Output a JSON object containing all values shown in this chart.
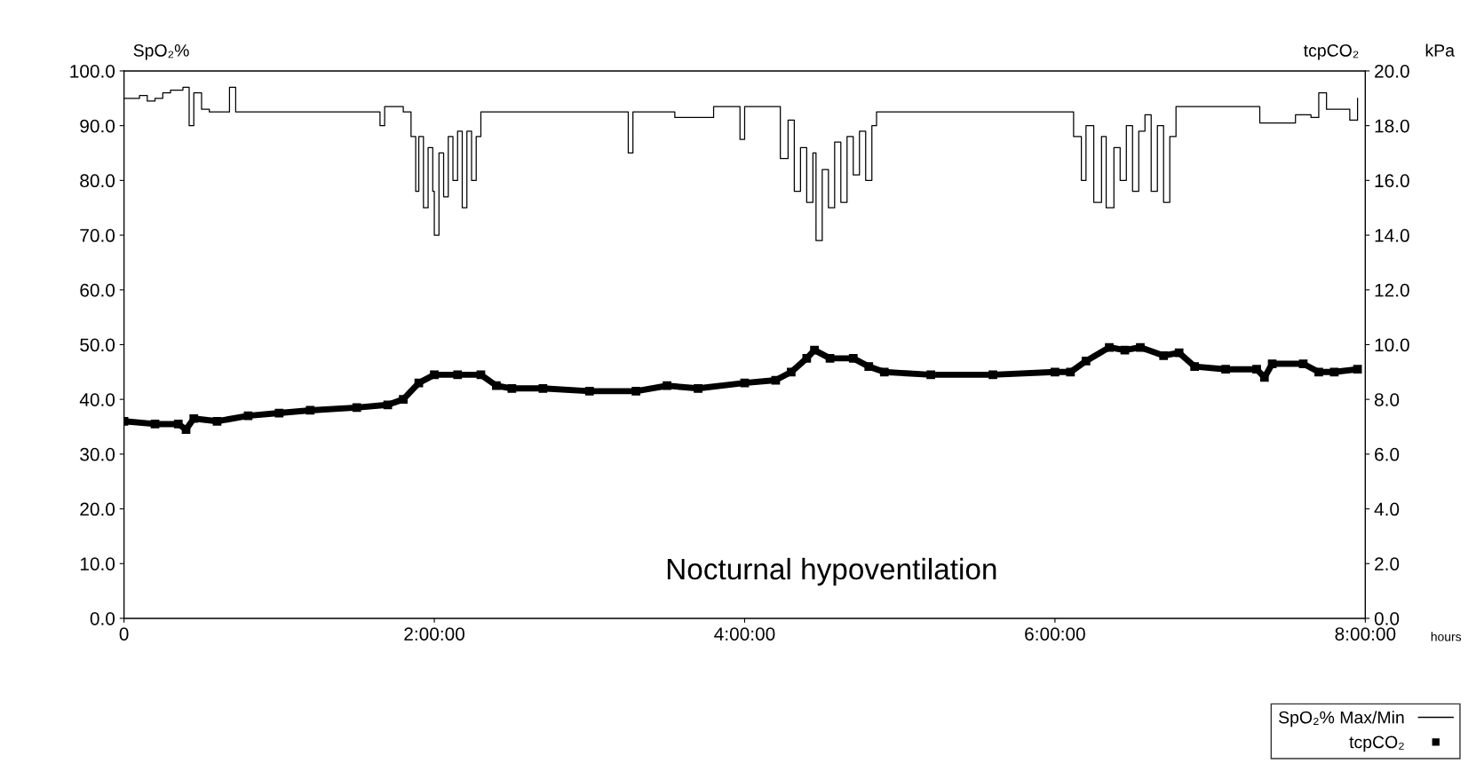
{
  "chart_data": {
    "type": "line",
    "ylabel": "SpO₂%",
    "y2label": "kPa",
    "xlabel": "hours",
    "annotations": [
      "tcpCO₂",
      "Nocturnal hypoventilation"
    ],
    "xlim": [
      0,
      8
    ],
    "xticks": [
      {
        "value": 0,
        "label": "0"
      },
      {
        "value": 2,
        "label": "2:00:00"
      },
      {
        "value": 4,
        "label": "4:00:00"
      },
      {
        "value": 6,
        "label": "6:00:00"
      },
      {
        "value": 8,
        "label": "8:00:00"
      }
    ],
    "ylim": [
      0,
      100
    ],
    "yticks": [
      {
        "value": 0,
        "label": "0.0"
      },
      {
        "value": 10,
        "label": "10.0"
      },
      {
        "value": 20,
        "label": "20.0"
      },
      {
        "value": 30,
        "label": "30.0"
      },
      {
        "value": 40,
        "label": "40.0"
      },
      {
        "value": 50,
        "label": "50.0"
      },
      {
        "value": 60,
        "label": "60.0"
      },
      {
        "value": 70,
        "label": "70.0"
      },
      {
        "value": 80,
        "label": "80.0"
      },
      {
        "value": 90,
        "label": "90.0"
      },
      {
        "value": 100,
        "label": "100.0"
      }
    ],
    "y2lim": [
      0,
      20
    ],
    "y2ticks": [
      {
        "value": 0,
        "label": "0.0"
      },
      {
        "value": 2,
        "label": "2.0"
      },
      {
        "value": 4,
        "label": "4.0"
      },
      {
        "value": 6,
        "label": "6.0"
      },
      {
        "value": 8,
        "label": "8.0"
      },
      {
        "value": 10,
        "label": "10.0"
      },
      {
        "value": 12,
        "label": "12.0"
      },
      {
        "value": 14,
        "label": "14.0"
      },
      {
        "value": 16,
        "label": "16.0"
      },
      {
        "value": 18,
        "label": "18.0"
      },
      {
        "value": 20,
        "label": "20.0"
      }
    ],
    "grid": false,
    "legend": "bottom right",
    "series": [
      {
        "name": "SpO₂% Max/Min",
        "type": "step",
        "color": "#000000",
        "marker": "none",
        "x": [
          0,
          0.1,
          0.15,
          0.2,
          0.25,
          0.3,
          0.38,
          0.42,
          0.45,
          0.5,
          0.55,
          0.65,
          0.68,
          0.72,
          1.0,
          1.3,
          1.6,
          1.65,
          1.68,
          1.8,
          1.85,
          1.88,
          1.9,
          1.93,
          1.96,
          1.99,
          2.0,
          2.03,
          2.06,
          2.09,
          2.12,
          2.15,
          2.18,
          2.21,
          2.24,
          2.27,
          2.3,
          2.6,
          2.9,
          3.2,
          3.25,
          3.28,
          3.5,
          3.55,
          3.8,
          3.95,
          3.97,
          4.0,
          4.2,
          4.23,
          4.28,
          4.32,
          4.36,
          4.4,
          4.44,
          4.46,
          4.5,
          4.54,
          4.58,
          4.62,
          4.66,
          4.7,
          4.74,
          4.78,
          4.82,
          4.85,
          5.2,
          5.6,
          6.0,
          6.1,
          6.12,
          6.17,
          6.2,
          6.25,
          6.3,
          6.33,
          6.38,
          6.42,
          6.46,
          6.5,
          6.54,
          6.58,
          6.62,
          6.66,
          6.7,
          6.74,
          6.78,
          7.0,
          7.3,
          7.32,
          7.5,
          7.55,
          7.65,
          7.7,
          7.75,
          7.85,
          7.9,
          7.95
        ],
        "values": [
          95,
          95.5,
          94.5,
          95,
          96,
          96.5,
          97,
          90,
          96,
          93,
          92.5,
          92.5,
          97,
          92.5,
          92.5,
          92.5,
          92.5,
          90,
          93.5,
          92.5,
          88,
          78,
          88,
          75,
          86,
          78,
          70,
          85,
          77,
          88,
          80,
          89,
          75,
          89,
          80,
          88,
          92.5,
          92.5,
          92.5,
          92.5,
          85,
          92.5,
          92.5,
          91.5,
          93.5,
          93.5,
          87.5,
          93.5,
          93.5,
          84,
          91,
          78,
          86,
          76,
          85,
          69,
          82,
          75,
          87,
          76,
          88,
          81,
          89,
          80,
          90,
          92.5,
          92.5,
          92.5,
          92.5,
          92.5,
          88,
          80,
          90,
          76,
          88,
          75,
          86,
          80,
          90,
          78,
          89,
          92,
          78,
          90,
          76,
          88,
          93.5,
          93.5,
          93.5,
          90.5,
          90.5,
          92,
          91.5,
          96,
          93,
          93,
          91,
          95
        ]
      },
      {
        "name": "tcpCO₂",
        "axis": "y2",
        "color": "#000000",
        "marker": "square",
        "x": [
          0,
          0.2,
          0.35,
          0.4,
          0.45,
          0.6,
          0.8,
          1.0,
          1.2,
          1.5,
          1.7,
          1.8,
          1.9,
          2.0,
          2.15,
          2.3,
          2.4,
          2.5,
          2.7,
          3.0,
          3.3,
          3.5,
          3.7,
          4.0,
          4.2,
          4.3,
          4.4,
          4.45,
          4.55,
          4.7,
          4.8,
          4.9,
          5.2,
          5.6,
          6.0,
          6.1,
          6.2,
          6.35,
          6.45,
          6.55,
          6.7,
          6.8,
          6.9,
          7.1,
          7.3,
          7.35,
          7.4,
          7.6,
          7.7,
          7.8,
          7.95
        ],
        "values": [
          7.2,
          7.1,
          7.1,
          6.9,
          7.3,
          7.2,
          7.4,
          7.5,
          7.6,
          7.7,
          7.8,
          8.0,
          8.6,
          8.9,
          8.9,
          8.9,
          8.5,
          8.4,
          8.4,
          8.3,
          8.3,
          8.5,
          8.4,
          8.6,
          8.7,
          9.0,
          9.5,
          9.8,
          9.5,
          9.5,
          9.2,
          9.0,
          8.9,
          8.9,
          9.0,
          9.0,
          9.4,
          9.9,
          9.8,
          9.9,
          9.6,
          9.7,
          9.2,
          9.1,
          9.1,
          8.8,
          9.3,
          9.3,
          9.0,
          9.0,
          9.1
        ]
      }
    ]
  }
}
